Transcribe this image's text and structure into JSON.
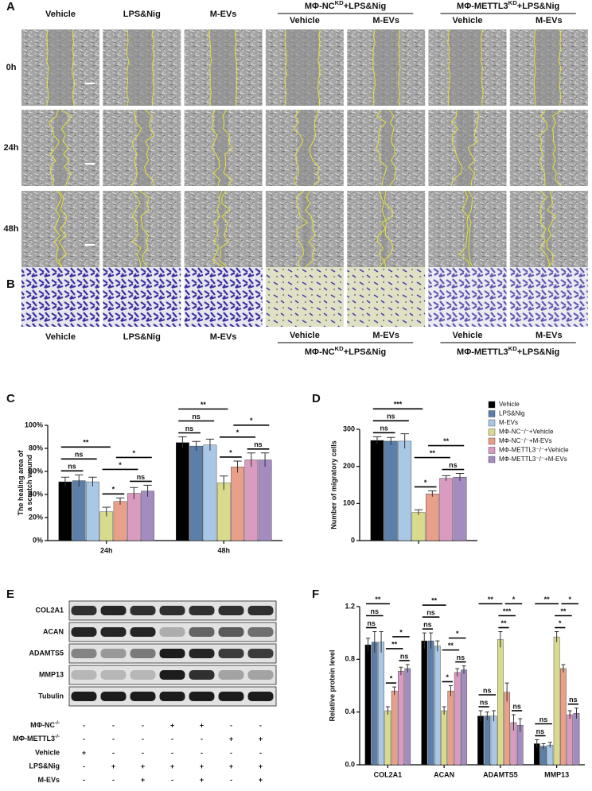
{
  "panels": {
    "a": "A",
    "b": "B",
    "c": "C",
    "d": "D",
    "e": "E",
    "f": "F"
  },
  "scratch_assay": {
    "columns": [
      "Vehicle",
      "LPS&Nig",
      "M-EVs"
    ],
    "groups": [
      {
        "prefix": "MΦ-NC",
        "sup": "KD",
        "suffix": "+LPS&Nig",
        "columns": [
          "Vehicle",
          "M-EVs"
        ]
      },
      {
        "prefix": "MΦ-METTL3",
        "sup": "KD",
        "suffix": "+LPS&Nig",
        "columns": [
          "Vehicle",
          "M-EVs"
        ]
      }
    ],
    "rows": [
      "0h",
      "24h",
      "48h"
    ]
  },
  "transwell": {
    "columns": [
      "Vehicle",
      "LPS&Nig",
      "M-EVs"
    ],
    "groups": [
      {
        "prefix": "MΦ-NC",
        "sup": "KD",
        "suffix": "+LPS&Nig",
        "columns": [
          "Vehicle",
          "M-EVs"
        ]
      },
      {
        "prefix": "MΦ-METTL3",
        "sup": "KD",
        "suffix": "+LPS&Nig",
        "columns": [
          "Vehicle",
          "M-EVs"
        ]
      }
    ]
  },
  "western_blot": {
    "proteins": [
      "COL2A1",
      "ACAN",
      "ADAMTS5",
      "MMP13",
      "Tubulin"
    ],
    "treatments": [
      {
        "label": "MΦ-NC",
        "sup": "-/-",
        "signs": [
          "-",
          "-",
          "-",
          "+",
          "+",
          "-",
          "-"
        ]
      },
      {
        "label": "MΦ-METTL3",
        "sup": "-/-",
        "signs": [
          "-",
          "-",
          "-",
          "-",
          "-",
          "+",
          "+"
        ]
      },
      {
        "label": "Vehicle",
        "signs": [
          "+",
          "-",
          "-",
          "-",
          "-",
          "-",
          "-"
        ]
      },
      {
        "label": "LPS&Nig",
        "signs": [
          "-",
          "+",
          "+",
          "+",
          "+",
          "+",
          "+"
        ]
      },
      {
        "label": "M-EVs",
        "signs": [
          "-",
          "-",
          "+",
          "-",
          "+",
          "-",
          "+"
        ]
      }
    ]
  },
  "chart_data": [
    {
      "type": "bar",
      "ylabel": [
        "The healing area of",
        "a scratch wound"
      ],
      "categories": [
        "24h",
        "48h"
      ],
      "ylim": [
        0,
        100
      ],
      "yticks": [
        {
          "value": 0,
          "label": "0%"
        },
        {
          "value": 20,
          "label": "20%"
        },
        {
          "value": 40,
          "label": "40%"
        },
        {
          "value": 60,
          "label": "60%"
        },
        {
          "value": 80,
          "label": "80%"
        },
        {
          "value": 100,
          "label": "100%"
        }
      ],
      "series": [
        {
          "color": "#000000",
          "values": [
            51,
            85
          ],
          "errors": [
            4,
            5
          ]
        },
        {
          "color": "#5b7fa8",
          "values": [
            52,
            82
          ],
          "errors": [
            5,
            4
          ]
        },
        {
          "color": "#a9c8e6",
          "values": [
            51,
            83
          ],
          "errors": [
            4,
            5
          ]
        },
        {
          "color": "#d8da8c",
          "values": [
            25,
            50
          ],
          "errors": [
            4,
            6
          ]
        },
        {
          "color": "#e8a08a",
          "values": [
            34,
            64
          ],
          "errors": [
            3,
            5
          ]
        },
        {
          "color": "#d99bc0",
          "values": [
            41,
            70
          ],
          "errors": [
            5,
            6
          ]
        },
        {
          "color": "#a48cc0",
          "values": [
            43,
            70
          ],
          "errors": [
            5,
            6
          ]
        }
      ],
      "comparisons": [
        {
          "category": 0,
          "pair": [
            0,
            3
          ],
          "label": "**"
        },
        {
          "category": 0,
          "pair": [
            0,
            1
          ],
          "label": "ns"
        },
        {
          "category": 0,
          "pair": [
            0,
            2
          ],
          "label": "ns"
        },
        {
          "category": 0,
          "pair": [
            3,
            4
          ],
          "label": "*"
        },
        {
          "category": 0,
          "pair": [
            3,
            5
          ],
          "label": "*"
        },
        {
          "category": 0,
          "pair": [
            4,
            6
          ],
          "label": "*"
        },
        {
          "category": 0,
          "pair": [
            5,
            6
          ],
          "label": "ns"
        },
        {
          "category": 1,
          "pair": [
            0,
            3
          ],
          "label": "**"
        },
        {
          "category": 1,
          "pair": [
            0,
            1
          ],
          "label": "ns"
        },
        {
          "category": 1,
          "pair": [
            0,
            2
          ],
          "label": "ns"
        },
        {
          "category": 1,
          "pair": [
            3,
            4
          ],
          "label": "*"
        },
        {
          "category": 1,
          "pair": [
            3,
            5
          ],
          "label": "*"
        },
        {
          "category": 1,
          "pair": [
            4,
            6
          ],
          "label": "*"
        },
        {
          "category": 1,
          "pair": [
            5,
            6
          ],
          "label": "ns"
        }
      ]
    },
    {
      "type": "bar",
      "ylabel": [
        "Number of migratory cells"
      ],
      "categories": [
        null
      ],
      "ylim": [
        0,
        300
      ],
      "yticks": [
        0,
        100,
        200,
        300
      ],
      "legend": "right",
      "series": [
        {
          "name": "Vehicle",
          "color": "#000000",
          "values": [
            270
          ],
          "errors": [
            10
          ]
        },
        {
          "name": "LPS&Nig",
          "color": "#5b7fa8",
          "values": [
            268
          ],
          "errors": [
            10
          ]
        },
        {
          "name": "M-EVs",
          "color": "#a9c8e6",
          "values": [
            268
          ],
          "errors": [
            20
          ]
        },
        {
          "name": "MΦ-NC⁻/⁻+Vehicle",
          "color": "#d8da8c",
          "values": [
            76
          ],
          "errors": [
            7
          ]
        },
        {
          "name": "MΦ-NC⁻/⁻+M-EVs",
          "color": "#e8a08a",
          "values": [
            126
          ],
          "errors": [
            8
          ]
        },
        {
          "name": "MΦ-METTL3⁻/⁻+Vehicle",
          "color": "#d99bc0",
          "values": [
            168
          ],
          "errors": [
            7
          ]
        },
        {
          "name": "MΦ-METTL3⁻/⁻+M-EVs",
          "color": "#a48cc0",
          "values": [
            171
          ],
          "errors": [
            10
          ]
        }
      ],
      "comparisons": [
        {
          "category": 0,
          "pair": [
            0,
            3
          ],
          "label": "***"
        },
        {
          "category": 0,
          "pair": [
            0,
            1
          ],
          "label": "ns"
        },
        {
          "category": 0,
          "pair": [
            0,
            2
          ],
          "label": "ns"
        },
        {
          "category": 0,
          "pair": [
            3,
            4
          ],
          "label": "*"
        },
        {
          "category": 0,
          "pair": [
            3,
            5
          ],
          "label": "**"
        },
        {
          "category": 0,
          "pair": [
            4,
            6
          ],
          "label": "**"
        },
        {
          "category": 0,
          "pair": [
            5,
            6
          ],
          "label": "ns"
        }
      ]
    },
    {
      "type": "bar",
      "ylabel": [
        "Relative protein level"
      ],
      "categories": [
        "COL2A1",
        "ACAN",
        "ADAMTS5",
        "MMP13"
      ],
      "ylim": [
        0,
        1.2
      ],
      "yticks": [
        {
          "value": 0,
          "label": "0.0"
        },
        0.4,
        0.8,
        1.2
      ],
      "series": [
        {
          "color": "#000000",
          "values": [
            0.91,
            0.94,
            0.37,
            0.16
          ],
          "errors": [
            0.05,
            0.06,
            0.04,
            0.03
          ]
        },
        {
          "color": "#5b7fa8",
          "values": [
            0.93,
            0.94,
            0.37,
            0.14
          ],
          "errors": [
            0.08,
            0.06,
            0.03,
            0.02
          ]
        },
        {
          "color": "#a9c8e6",
          "values": [
            0.93,
            0.9,
            0.37,
            0.15
          ],
          "errors": [
            0.08,
            0.04,
            0.04,
            0.02
          ]
        },
        {
          "color": "#d8da8c",
          "values": [
            0.41,
            0.41,
            0.95,
            0.97
          ],
          "errors": [
            0.03,
            0.03,
            0.06,
            0.04
          ]
        },
        {
          "color": "#e8a08a",
          "values": [
            0.56,
            0.56,
            0.55,
            0.73
          ],
          "errors": [
            0.03,
            0.04,
            0.07,
            0.03
          ]
        },
        {
          "color": "#d99bc0",
          "values": [
            0.71,
            0.7,
            0.32,
            0.38
          ],
          "errors": [
            0.03,
            0.03,
            0.06,
            0.03
          ]
        },
        {
          "color": "#a48cc0",
          "values": [
            0.73,
            0.72,
            0.3,
            0.39
          ],
          "errors": [
            0.03,
            0.03,
            0.05,
            0.04
          ]
        }
      ],
      "comparisons": [
        {
          "category": 0,
          "pair": [
            0,
            3
          ],
          "label": "**"
        },
        {
          "category": 0,
          "pair": [
            0,
            1
          ],
          "label": "ns"
        },
        {
          "category": 0,
          "pair": [
            0,
            2
          ],
          "label": "ns"
        },
        {
          "category": 0,
          "pair": [
            3,
            4
          ],
          "label": "*"
        },
        {
          "category": 0,
          "pair": [
            3,
            5
          ],
          "label": "**"
        },
        {
          "category": 0,
          "pair": [
            4,
            6
          ],
          "label": "*"
        },
        {
          "category": 0,
          "pair": [
            5,
            6
          ],
          "label": "ns"
        },
        {
          "category": 1,
          "pair": [
            0,
            3
          ],
          "label": "**"
        },
        {
          "category": 1,
          "pair": [
            0,
            1
          ],
          "label": "ns"
        },
        {
          "category": 1,
          "pair": [
            0,
            2
          ],
          "label": "ns"
        },
        {
          "category": 1,
          "pair": [
            3,
            4
          ],
          "label": "*"
        },
        {
          "category": 1,
          "pair": [
            3,
            5
          ],
          "label": "**"
        },
        {
          "category": 1,
          "pair": [
            4,
            6
          ],
          "label": "*"
        },
        {
          "category": 1,
          "pair": [
            5,
            6
          ],
          "label": "ns"
        },
        {
          "category": 2,
          "pair": [
            0,
            3
          ],
          "label": "**"
        },
        {
          "category": 2,
          "pair": [
            0,
            1
          ],
          "label": "ns"
        },
        {
          "category": 2,
          "pair": [
            0,
            2
          ],
          "label": "ns"
        },
        {
          "category": 2,
          "pair": [
            3,
            4
          ],
          "label": "**"
        },
        {
          "category": 2,
          "pair": [
            3,
            5
          ],
          "label": "***"
        },
        {
          "category": 2,
          "pair": [
            4,
            6
          ],
          "label": "*"
        },
        {
          "category": 2,
          "pair": [
            5,
            6
          ],
          "label": "ns"
        },
        {
          "category": 3,
          "pair": [
            0,
            3
          ],
          "label": "**"
        },
        {
          "category": 3,
          "pair": [
            0,
            1
          ],
          "label": "ns"
        },
        {
          "category": 3,
          "pair": [
            0,
            2
          ],
          "label": "ns"
        },
        {
          "category": 3,
          "pair": [
            3,
            4
          ],
          "label": "*"
        },
        {
          "category": 3,
          "pair": [
            3,
            5
          ],
          "label": "**"
        },
        {
          "category": 3,
          "pair": [
            4,
            6
          ],
          "label": "*"
        },
        {
          "category": 3,
          "pair": [
            5,
            6
          ],
          "label": "ns"
        }
      ]
    }
  ]
}
